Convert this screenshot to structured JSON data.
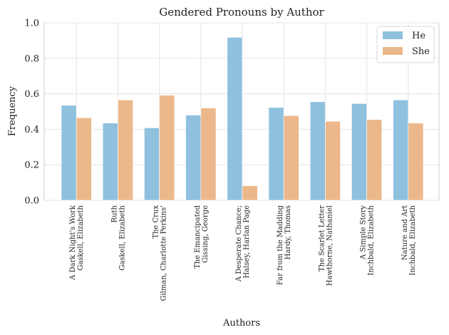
{
  "chart_data": {
    "type": "bar",
    "title": "Gendered Pronouns by Author",
    "xlabel": "Authors",
    "ylabel": "Frequency",
    "ylim": [
      0,
      1.0
    ],
    "yticks": [
      "0.0",
      "0.2",
      "0.4",
      "0.6",
      "0.8",
      "1.0"
    ],
    "grid": true,
    "legend_position": "top-right",
    "categories": [
      [
        "A Dark Night's Work",
        "Gaskell, Elizabeth"
      ],
      [
        "Ruth",
        "Gaskell, Elizabeth"
      ],
      [
        "The Crux",
        "Gilman, Charlotte Perkins'"
      ],
      [
        "The Emancipated",
        "Gissing, George"
      ],
      [
        "A Desperate Chance;",
        "Halsey, Harlan Page"
      ],
      [
        "Far from the Madding",
        "Hardy, Thomas"
      ],
      [
        "The Scarlet Letter",
        "Hawthorne, Nathaniel"
      ],
      [
        "A Simple Story",
        "Inchbald, Elizabeth"
      ],
      [
        "Nature and Art",
        "Inchbald, Elizabeth"
      ]
    ],
    "series": [
      {
        "name": "He",
        "color": "#8fc1de",
        "values": [
          0.535,
          0.435,
          0.408,
          0.48,
          0.918,
          0.523,
          0.555,
          0.545,
          0.565
        ]
      },
      {
        "name": "She",
        "color": "#ecb88b",
        "values": [
          0.465,
          0.565,
          0.592,
          0.52,
          0.082,
          0.477,
          0.445,
          0.455,
          0.435
        ]
      }
    ]
  }
}
